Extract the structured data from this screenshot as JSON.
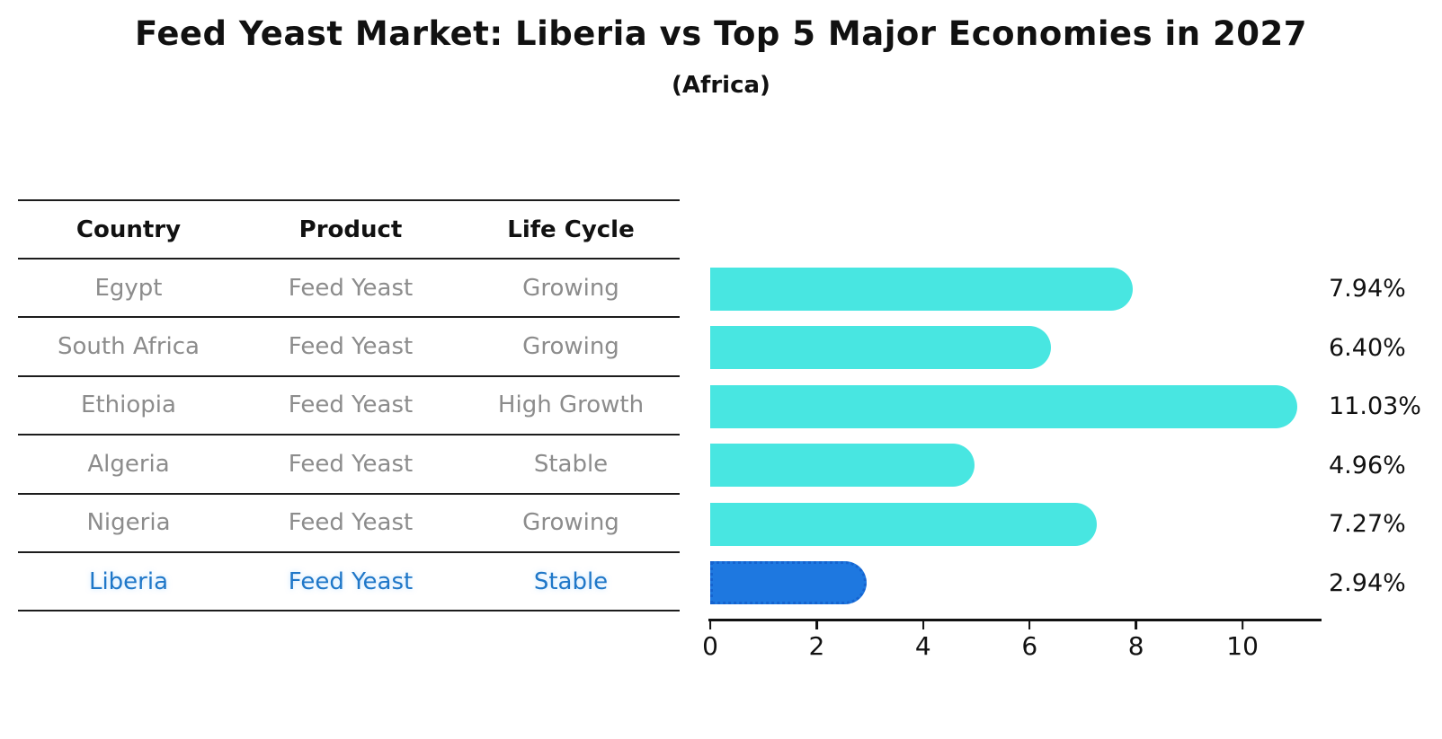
{
  "title": "Feed Yeast Market: Liberia vs Top 5 Major Economies in 2027",
  "subtitle": "(Africa)",
  "table": {
    "headers": [
      "Country",
      "Product",
      "Life Cycle"
    ],
    "rows": [
      {
        "country": "Egypt",
        "product": "Feed Yeast",
        "life_cycle": "Growing",
        "value_label": "7.94%"
      },
      {
        "country": "South Africa",
        "product": "Feed Yeast",
        "life_cycle": "Growing",
        "value_label": "6.40%"
      },
      {
        "country": "Ethiopia",
        "product": "Feed Yeast",
        "life_cycle": "High Growth",
        "value_label": "11.03%"
      },
      {
        "country": "Algeria",
        "product": "Feed Yeast",
        "life_cycle": "Stable",
        "value_label": "4.96%"
      },
      {
        "country": "Nigeria",
        "product": "Feed Yeast",
        "life_cycle": "Growing",
        "value_label": "7.27%"
      },
      {
        "country": "Liberia",
        "product": "Feed Yeast",
        "life_cycle": "Stable",
        "value_label": "2.94%"
      }
    ]
  },
  "chart_data": {
    "type": "bar",
    "orientation": "horizontal",
    "title": "Feed Yeast Market: Liberia vs Top 5 Major Economies in 2027",
    "subtitle": "(Africa)",
    "categories": [
      "Egypt",
      "South Africa",
      "Ethiopia",
      "Algeria",
      "Nigeria",
      "Liberia"
    ],
    "values": [
      7.94,
      6.4,
      11.03,
      4.96,
      7.27,
      2.94
    ],
    "value_labels": [
      "7.94%",
      "6.40%",
      "11.03%",
      "4.96%",
      "7.27%",
      "2.94%"
    ],
    "highlight_category": "Liberia",
    "highlight_index": 5,
    "xlim": [
      0,
      11.45
    ],
    "xticks": [
      0,
      2,
      4,
      6,
      8,
      10
    ],
    "grid": false,
    "legend": false,
    "colors": {
      "bar_default": "#48E6E1",
      "bar_highlight": "#1E78E0",
      "bar_highlight_border": "#1563CF",
      "highlight_text": "#1F77C8",
      "row_text": "#8C8C8C",
      "header_text": "#111111"
    }
  }
}
